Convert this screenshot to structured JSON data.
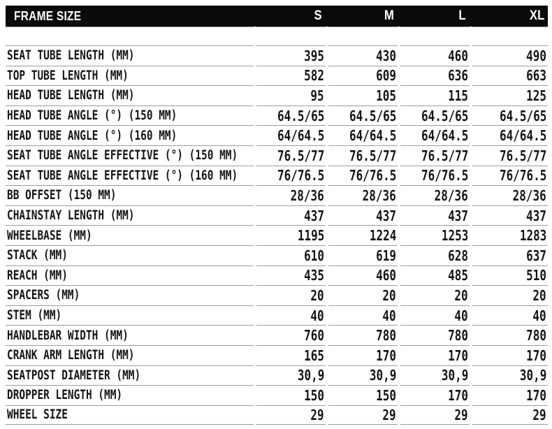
{
  "colors": {
    "header_bar": "#0b0b0b",
    "header_text": "#ffffff",
    "divider": "#9c9c9c",
    "text": "#151515",
    "background": "#ffffff"
  },
  "chart_data": {
    "type": "table",
    "title": "FRAME SIZE",
    "columns": [
      "S",
      "M",
      "L",
      "XL"
    ],
    "rows": [
      {
        "label": "SEAT TUBE LENGTH (MM)",
        "values": [
          "395",
          "430",
          "460",
          "490"
        ]
      },
      {
        "label": "TOP TUBE LENGTH (MM)",
        "values": [
          "582",
          "609",
          "636",
          "663"
        ]
      },
      {
        "label": "HEAD TUBE LENGTH (MM)",
        "values": [
          "95",
          "105",
          "115",
          "125"
        ]
      },
      {
        "label": "HEAD TUBE ANGLE (°) (150 MM)",
        "values": [
          "64.5/65",
          "64.5/65",
          "64.5/65",
          "64.5/65"
        ]
      },
      {
        "label": "HEAD TUBE ANGLE (°) (160 MM)",
        "values": [
          "64/64.5",
          "64/64.5",
          "64/64.5",
          "64/64.5"
        ]
      },
      {
        "label": "SEAT TUBE ANGLE EFFECTIVE (°) (150 MM)",
        "values": [
          "76.5/77",
          "76.5/77",
          "76.5/77",
          "76.5/77"
        ]
      },
      {
        "label": "SEAT TUBE ANGLE EFFECTIVE (°) (160 MM)",
        "values": [
          "76/76.5",
          "76/76.5",
          "76/76.5",
          "76/76.5"
        ]
      },
      {
        "label": "BB OFFSET (150 MM)",
        "values": [
          "28/36",
          "28/36",
          "28/36",
          "28/36"
        ]
      },
      {
        "label": "CHAINSTAY LENGTH (MM)",
        "values": [
          "437",
          "437",
          "437",
          "437"
        ]
      },
      {
        "label": "WHEELBASE (MM)",
        "values": [
          "1195",
          "1224",
          "1253",
          "1283"
        ]
      },
      {
        "label": "STACK (MM)",
        "values": [
          "610",
          "619",
          "628",
          "637"
        ]
      },
      {
        "label": "REACH (MM)",
        "values": [
          "435",
          "460",
          "485",
          "510"
        ]
      },
      {
        "label": "SPACERS (MM)",
        "values": [
          "20",
          "20",
          "20",
          "20"
        ]
      },
      {
        "label": "STEM (MM)",
        "values": [
          "40",
          "40",
          "40",
          "40"
        ]
      },
      {
        "label": "HANDLEBAR WIDTH (MM)",
        "values": [
          "760",
          "780",
          "780",
          "780"
        ]
      },
      {
        "label": "CRANK ARM LENGTH (MM)",
        "values": [
          "165",
          "170",
          "170",
          "170"
        ]
      },
      {
        "label": "SEATPOST DIAMETER (MM)",
        "values": [
          "30,9",
          "30,9",
          "30,9",
          "30,9"
        ]
      },
      {
        "label": "DROPPER LENGTH (MM)",
        "values": [
          "150",
          "150",
          "170",
          "170"
        ]
      },
      {
        "label": "WHEEL SIZE",
        "values": [
          "29",
          "29",
          "29",
          "29"
        ]
      }
    ]
  }
}
